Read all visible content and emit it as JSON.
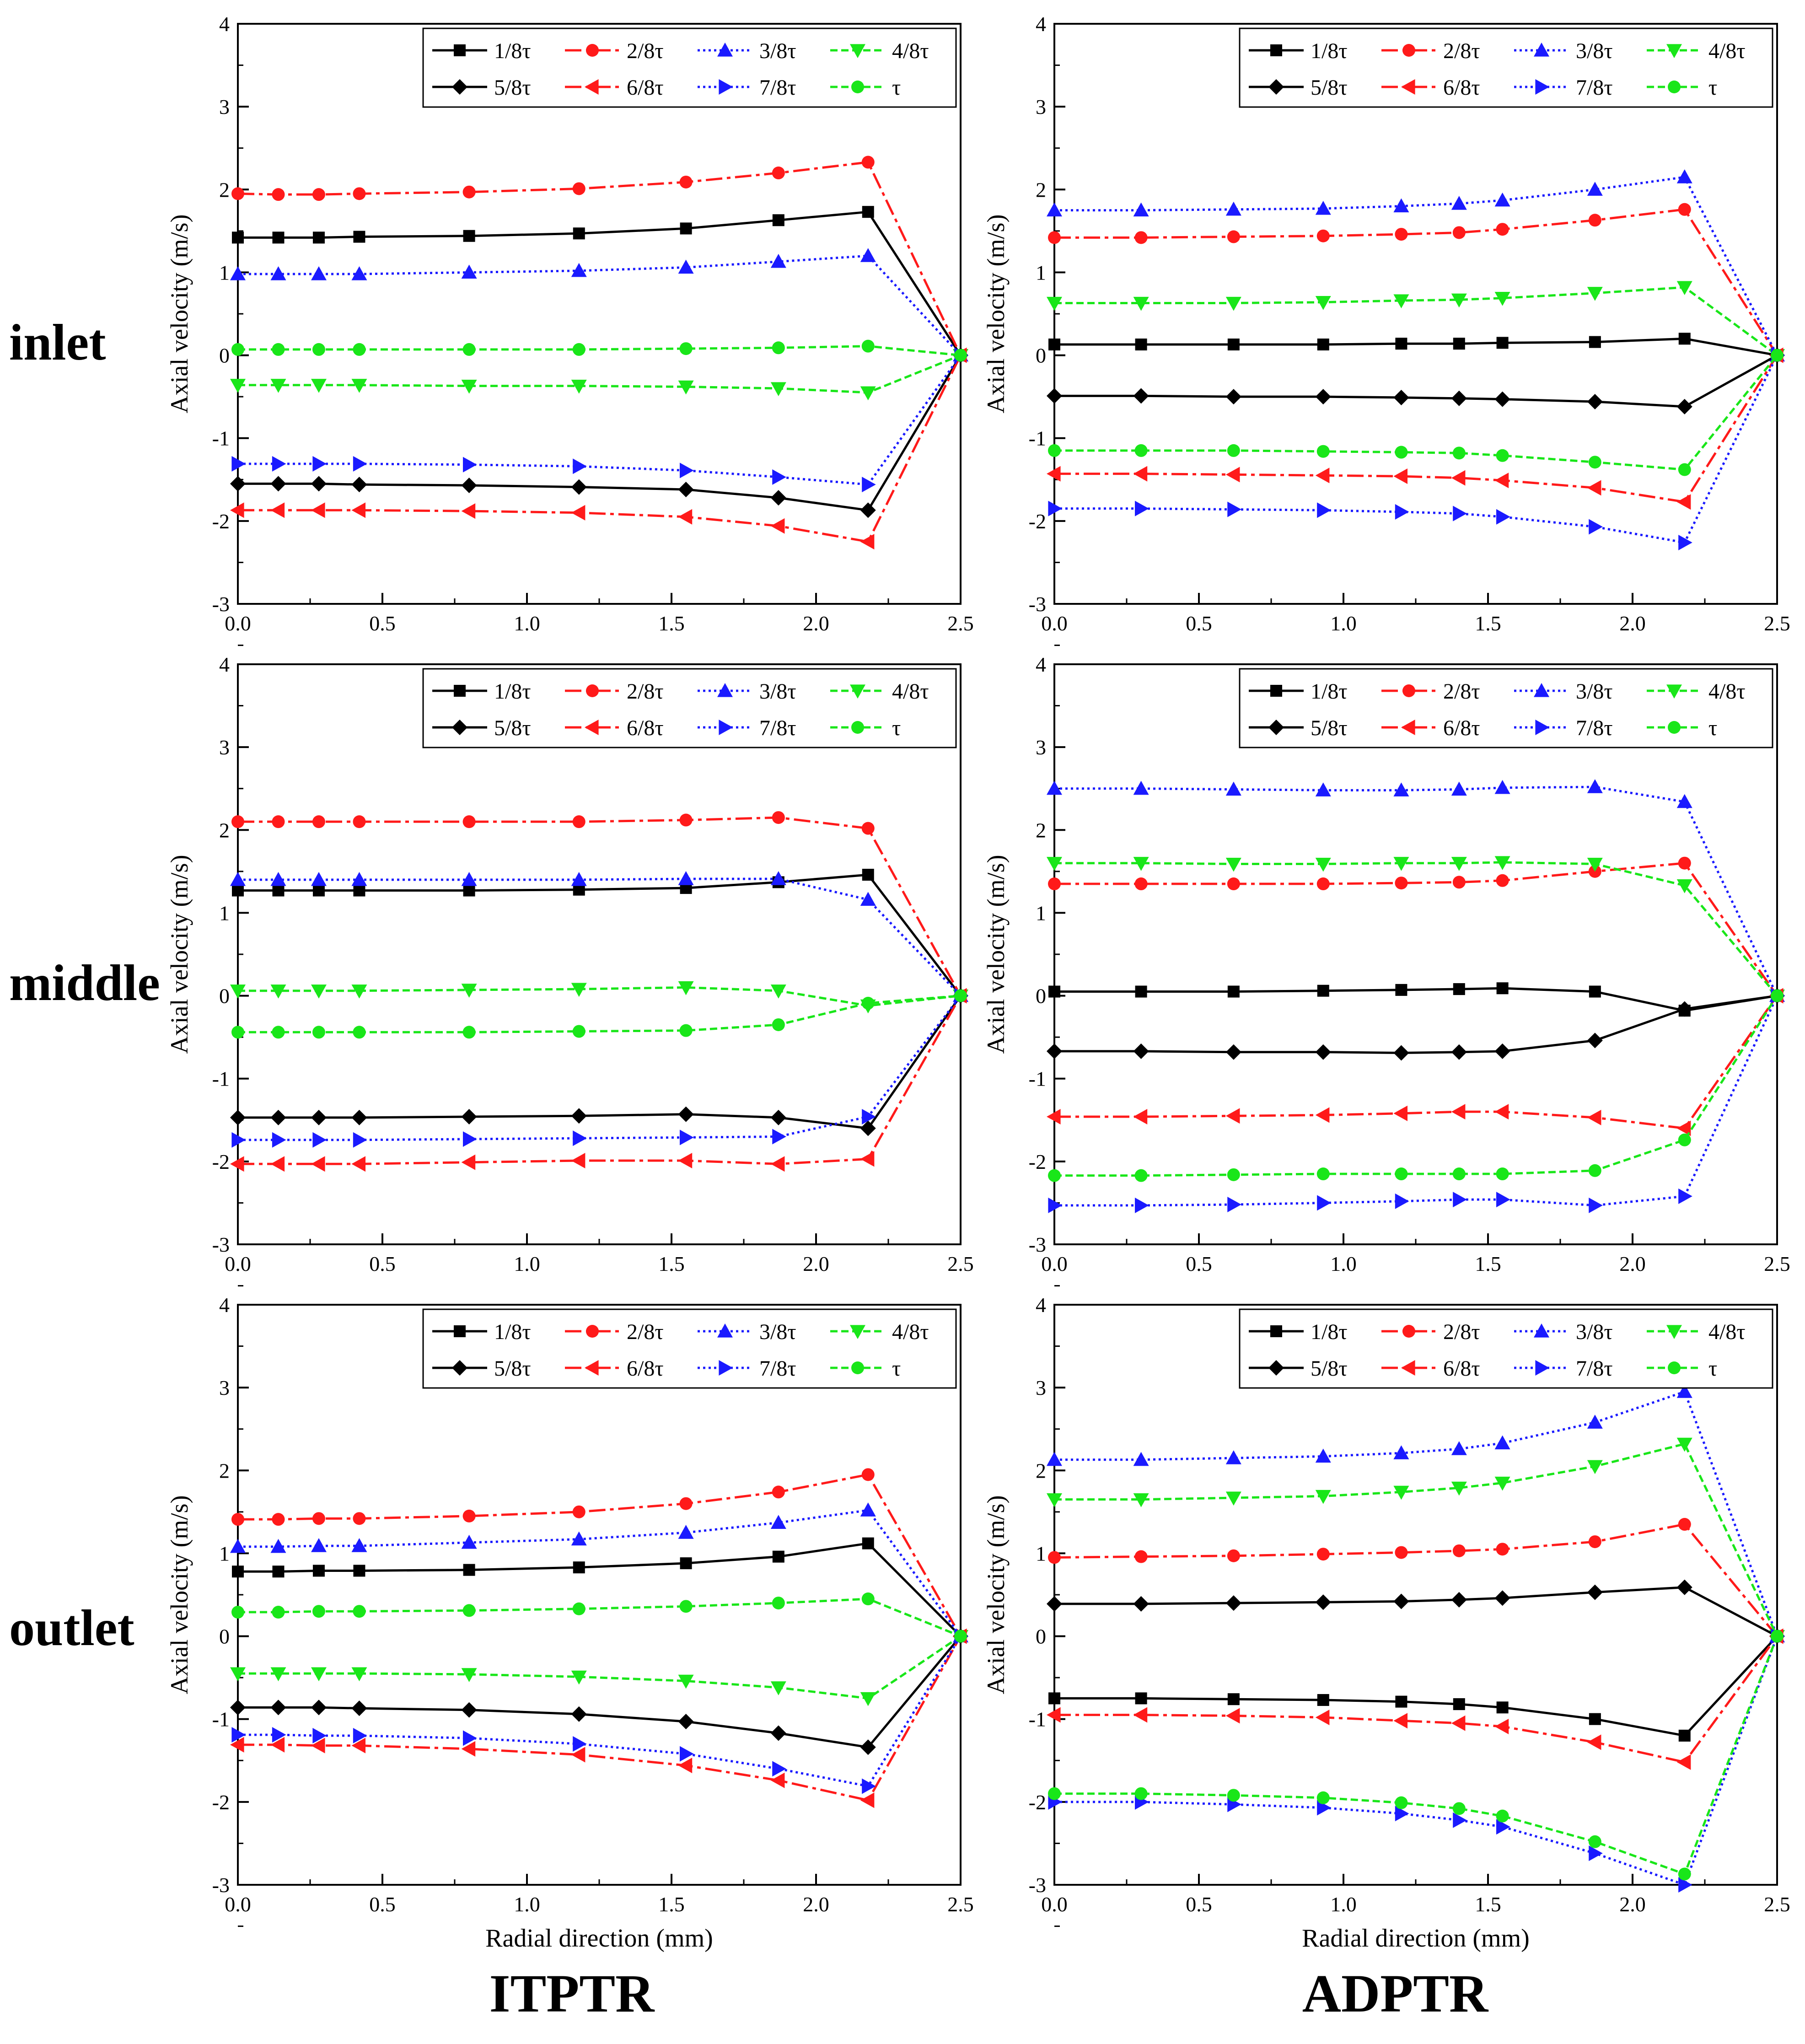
{
  "labels": {
    "rows": [
      "inlet",
      "middle",
      "outlet"
    ],
    "columns": [
      "ITPTR",
      "ADPTR"
    ]
  },
  "colors": {
    "black": "#000000",
    "red": "#ff1a1a",
    "blue": "#1a1aff",
    "green": "#19e619"
  },
  "chart_data": [
    {
      "type": "line",
      "panel": "ITPTR-inlet",
      "xlabel": "",
      "ylabel": "Axial velocity (m/s)",
      "xlim": [
        0.0,
        2.5
      ],
      "ylim": [
        -3,
        4
      ],
      "xticks": [
        "0.0",
        "0.5",
        "1.0",
        "1.5",
        "2.0",
        "2.5"
      ],
      "yticks": [
        "-3",
        "-2",
        "-1",
        "0",
        "1",
        "2",
        "3",
        "4"
      ],
      "legend": "top-right",
      "x": [
        0.0,
        0.14,
        0.28,
        0.42,
        0.8,
        1.18,
        1.55,
        1.87,
        2.18,
        2.5
      ],
      "series": [
        {
          "name": "1/8τ",
          "values": [
            1.42,
            1.42,
            1.42,
            1.43,
            1.44,
            1.47,
            1.53,
            1.63,
            1.73,
            0
          ]
        },
        {
          "name": "2/8τ",
          "values": [
            1.95,
            1.94,
            1.94,
            1.95,
            1.97,
            2.01,
            2.09,
            2.2,
            2.33,
            0
          ]
        },
        {
          "name": "3/8τ",
          "values": [
            0.98,
            0.98,
            0.98,
            0.98,
            1.0,
            1.02,
            1.06,
            1.13,
            1.2,
            0
          ]
        },
        {
          "name": "4/8τ",
          "values": [
            -0.36,
            -0.36,
            -0.36,
            -0.36,
            -0.37,
            -0.37,
            -0.38,
            -0.4,
            -0.45,
            0
          ]
        },
        {
          "name": "5/8τ",
          "values": [
            -1.55,
            -1.55,
            -1.55,
            -1.56,
            -1.57,
            -1.59,
            -1.62,
            -1.72,
            -1.87,
            0
          ]
        },
        {
          "name": "6/8τ",
          "values": [
            -1.87,
            -1.87,
            -1.87,
            -1.87,
            -1.88,
            -1.9,
            -1.95,
            -2.06,
            -2.25,
            0
          ]
        },
        {
          "name": "7/8τ",
          "values": [
            -1.31,
            -1.31,
            -1.31,
            -1.31,
            -1.32,
            -1.34,
            -1.39,
            -1.47,
            -1.56,
            0
          ]
        },
        {
          "name": "τ",
          "values": [
            0.07,
            0.07,
            0.07,
            0.07,
            0.07,
            0.07,
            0.08,
            0.09,
            0.11,
            0
          ]
        }
      ]
    },
    {
      "type": "line",
      "panel": "ADPTR-inlet",
      "xlabel": "",
      "ylabel": "Axial velocity (m/s)",
      "xlim": [
        0.0,
        2.5
      ],
      "ylim": [
        -3,
        4
      ],
      "xticks": [
        "0.0",
        "0.5",
        "1.0",
        "1.5",
        "2.0",
        "2.5"
      ],
      "yticks": [
        "-3",
        "-2",
        "-1",
        "0",
        "1",
        "2",
        "3",
        "4"
      ],
      "legend": "top-right",
      "x": [
        0.0,
        0.3,
        0.62,
        0.93,
        1.2,
        1.4,
        1.55,
        1.87,
        2.18,
        2.5
      ],
      "series": [
        {
          "name": "1/8τ",
          "values": [
            0.13,
            0.13,
            0.13,
            0.13,
            0.14,
            0.14,
            0.15,
            0.16,
            0.2,
            0
          ]
        },
        {
          "name": "2/8τ",
          "values": [
            1.42,
            1.42,
            1.43,
            1.44,
            1.46,
            1.48,
            1.52,
            1.63,
            1.76,
            0
          ]
        },
        {
          "name": "3/8τ",
          "values": [
            1.75,
            1.75,
            1.76,
            1.77,
            1.8,
            1.83,
            1.87,
            2.0,
            2.15,
            0
          ]
        },
        {
          "name": "4/8τ",
          "values": [
            0.63,
            0.63,
            0.63,
            0.64,
            0.66,
            0.67,
            0.69,
            0.75,
            0.82,
            0
          ]
        },
        {
          "name": "5/8τ",
          "values": [
            -0.49,
            -0.49,
            -0.5,
            -0.5,
            -0.51,
            -0.52,
            -0.53,
            -0.56,
            -0.62,
            0
          ]
        },
        {
          "name": "6/8τ",
          "values": [
            -1.43,
            -1.43,
            -1.44,
            -1.45,
            -1.46,
            -1.48,
            -1.51,
            -1.6,
            -1.77,
            0
          ]
        },
        {
          "name": "7/8τ",
          "values": [
            -1.85,
            -1.85,
            -1.86,
            -1.87,
            -1.89,
            -1.91,
            -1.95,
            -2.07,
            -2.26,
            0
          ]
        },
        {
          "name": "τ",
          "values": [
            -1.15,
            -1.15,
            -1.15,
            -1.16,
            -1.17,
            -1.18,
            -1.21,
            -1.29,
            -1.38,
            0
          ]
        }
      ]
    },
    {
      "type": "line",
      "panel": "ITPTR-middle",
      "xlabel": "",
      "ylabel": "Axial velocity (m/s)",
      "xlim": [
        0.0,
        2.5
      ],
      "ylim": [
        -3,
        4
      ],
      "xticks": [
        "0.0",
        "0.5",
        "1.0",
        "1.5",
        "2.0",
        "2.5"
      ],
      "yticks": [
        "-3",
        "-2",
        "-1",
        "0",
        "1",
        "2",
        "3",
        "4"
      ],
      "legend": "top-right",
      "x": [
        0.0,
        0.14,
        0.28,
        0.42,
        0.8,
        1.18,
        1.55,
        1.87,
        2.18,
        2.5
      ],
      "series": [
        {
          "name": "1/8τ",
          "values": [
            1.27,
            1.27,
            1.27,
            1.27,
            1.27,
            1.28,
            1.3,
            1.37,
            1.46,
            0
          ]
        },
        {
          "name": "2/8τ",
          "values": [
            2.1,
            2.1,
            2.1,
            2.1,
            2.1,
            2.1,
            2.12,
            2.15,
            2.02,
            0
          ]
        },
        {
          "name": "3/8τ",
          "values": [
            1.4,
            1.4,
            1.4,
            1.4,
            1.4,
            1.4,
            1.41,
            1.41,
            1.16,
            0
          ]
        },
        {
          "name": "4/8τ",
          "values": [
            0.06,
            0.06,
            0.06,
            0.06,
            0.07,
            0.08,
            0.1,
            0.06,
            -0.12,
            0
          ]
        },
        {
          "name": "5/8τ",
          "values": [
            -1.47,
            -1.47,
            -1.47,
            -1.47,
            -1.46,
            -1.45,
            -1.43,
            -1.47,
            -1.6,
            0
          ]
        },
        {
          "name": "6/8τ",
          "values": [
            -2.03,
            -2.03,
            -2.03,
            -2.03,
            -2.01,
            -1.99,
            -1.99,
            -2.03,
            -1.97,
            0
          ]
        },
        {
          "name": "7/8τ",
          "values": [
            -1.74,
            -1.74,
            -1.74,
            -1.74,
            -1.73,
            -1.72,
            -1.71,
            -1.7,
            -1.46,
            0
          ]
        },
        {
          "name": "τ",
          "values": [
            -0.44,
            -0.44,
            -0.44,
            -0.44,
            -0.44,
            -0.43,
            -0.42,
            -0.35,
            -0.09,
            0
          ]
        }
      ]
    },
    {
      "type": "line",
      "panel": "ADPTR-middle",
      "xlabel": "",
      "ylabel": "Axial velocity (m/s)",
      "xlim": [
        0.0,
        2.5
      ],
      "ylim": [
        -3,
        4
      ],
      "xticks": [
        "0.0",
        "0.5",
        "1.0",
        "1.5",
        "2.0",
        "2.5"
      ],
      "yticks": [
        "-3",
        "-2",
        "-1",
        "0",
        "1",
        "2",
        "3",
        "4"
      ],
      "legend": "top-right",
      "x": [
        0.0,
        0.3,
        0.62,
        0.93,
        1.2,
        1.4,
        1.55,
        1.87,
        2.18,
        2.5
      ],
      "series": [
        {
          "name": "1/8τ",
          "values": [
            0.05,
            0.05,
            0.05,
            0.06,
            0.07,
            0.08,
            0.09,
            0.05,
            -0.18,
            0
          ]
        },
        {
          "name": "2/8τ",
          "values": [
            1.35,
            1.35,
            1.35,
            1.35,
            1.36,
            1.37,
            1.39,
            1.5,
            1.6,
            0
          ]
        },
        {
          "name": "3/8τ",
          "values": [
            2.5,
            2.5,
            2.49,
            2.48,
            2.48,
            2.49,
            2.51,
            2.52,
            2.34,
            0
          ]
        },
        {
          "name": "4/8τ",
          "values": [
            1.6,
            1.6,
            1.59,
            1.59,
            1.6,
            1.6,
            1.61,
            1.59,
            1.33,
            0
          ]
        },
        {
          "name": "5/8τ",
          "values": [
            -0.67,
            -0.67,
            -0.68,
            -0.68,
            -0.69,
            -0.68,
            -0.67,
            -0.54,
            -0.16,
            0
          ]
        },
        {
          "name": "6/8τ",
          "values": [
            -1.46,
            -1.46,
            -1.45,
            -1.44,
            -1.42,
            -1.4,
            -1.4,
            -1.47,
            -1.6,
            0
          ]
        },
        {
          "name": "7/8τ",
          "values": [
            -2.53,
            -2.53,
            -2.52,
            -2.5,
            -2.48,
            -2.46,
            -2.46,
            -2.53,
            -2.42,
            0
          ]
        },
        {
          "name": "τ",
          "values": [
            -2.17,
            -2.17,
            -2.16,
            -2.15,
            -2.15,
            -2.15,
            -2.15,
            -2.11,
            -1.74,
            0
          ]
        }
      ]
    },
    {
      "type": "line",
      "panel": "ITPTR-outlet",
      "xlabel": "Radial direction (mm)",
      "ylabel": "Axial velocity (m/s)",
      "xlim": [
        0.0,
        2.5
      ],
      "ylim": [
        -3,
        4
      ],
      "xticks": [
        "0.0",
        "0.5",
        "1.0",
        "1.5",
        "2.0",
        "2.5"
      ],
      "yticks": [
        "-3",
        "-2",
        "-1",
        "0",
        "1",
        "2",
        "3",
        "4"
      ],
      "legend": "top-right",
      "x": [
        0.0,
        0.14,
        0.28,
        0.42,
        0.8,
        1.18,
        1.55,
        1.87,
        2.18,
        2.5
      ],
      "series": [
        {
          "name": "1/8τ",
          "values": [
            0.78,
            0.78,
            0.79,
            0.79,
            0.8,
            0.83,
            0.88,
            0.96,
            1.12,
            0
          ]
        },
        {
          "name": "2/8τ",
          "values": [
            1.41,
            1.41,
            1.42,
            1.42,
            1.45,
            1.5,
            1.6,
            1.74,
            1.95,
            0
          ]
        },
        {
          "name": "3/8τ",
          "values": [
            1.08,
            1.08,
            1.09,
            1.09,
            1.13,
            1.17,
            1.25,
            1.37,
            1.52,
            0
          ]
        },
        {
          "name": "4/8τ",
          "values": [
            -0.45,
            -0.45,
            -0.45,
            -0.45,
            -0.46,
            -0.49,
            -0.54,
            -0.62,
            -0.75,
            0
          ]
        },
        {
          "name": "5/8τ",
          "values": [
            -0.86,
            -0.86,
            -0.86,
            -0.87,
            -0.89,
            -0.94,
            -1.03,
            -1.17,
            -1.34,
            0
          ]
        },
        {
          "name": "6/8τ",
          "values": [
            -1.31,
            -1.31,
            -1.32,
            -1.32,
            -1.36,
            -1.43,
            -1.56,
            -1.74,
            -1.98,
            0
          ]
        },
        {
          "name": "7/8τ",
          "values": [
            -1.19,
            -1.19,
            -1.2,
            -1.2,
            -1.23,
            -1.3,
            -1.42,
            -1.6,
            -1.81,
            0
          ]
        },
        {
          "name": "τ",
          "values": [
            0.29,
            0.29,
            0.3,
            0.3,
            0.31,
            0.33,
            0.36,
            0.4,
            0.45,
            0
          ]
        }
      ]
    },
    {
      "type": "line",
      "panel": "ADPTR-outlet",
      "xlabel": "Radial direction (mm)",
      "ylabel": "Axial velocity (m/s)",
      "xlim": [
        0.0,
        2.5
      ],
      "ylim": [
        -3,
        4
      ],
      "xticks": [
        "0.0",
        "0.5",
        "1.0",
        "1.5",
        "2.0",
        "2.5"
      ],
      "yticks": [
        "-3",
        "-2",
        "-1",
        "0",
        "1",
        "2",
        "3",
        "4"
      ],
      "legend": "top-right",
      "x": [
        0.0,
        0.3,
        0.62,
        0.93,
        1.2,
        1.4,
        1.55,
        1.87,
        2.18,
        2.5
      ],
      "series": [
        {
          "name": "1/8τ",
          "values": [
            -0.75,
            -0.75,
            -0.76,
            -0.77,
            -0.79,
            -0.82,
            -0.86,
            -1.0,
            -1.2,
            0
          ]
        },
        {
          "name": "2/8τ",
          "values": [
            0.95,
            0.96,
            0.97,
            0.99,
            1.01,
            1.03,
            1.05,
            1.14,
            1.35,
            0
          ]
        },
        {
          "name": "3/8τ",
          "values": [
            2.13,
            2.13,
            2.15,
            2.17,
            2.21,
            2.26,
            2.33,
            2.58,
            2.95,
            0
          ]
        },
        {
          "name": "4/8τ",
          "values": [
            1.65,
            1.65,
            1.67,
            1.69,
            1.74,
            1.79,
            1.85,
            2.05,
            2.32,
            0
          ]
        },
        {
          "name": "5/8τ",
          "values": [
            0.39,
            0.39,
            0.4,
            0.41,
            0.42,
            0.44,
            0.46,
            0.53,
            0.59,
            0
          ]
        },
        {
          "name": "6/8τ",
          "values": [
            -0.95,
            -0.95,
            -0.96,
            -0.98,
            -1.02,
            -1.05,
            -1.09,
            -1.28,
            -1.52,
            0
          ]
        },
        {
          "name": "7/8τ",
          "values": [
            -2.0,
            -2.0,
            -2.03,
            -2.07,
            -2.14,
            -2.22,
            -2.3,
            -2.62,
            -3.0,
            0
          ]
        },
        {
          "name": "τ",
          "values": [
            -1.9,
            -1.9,
            -1.92,
            -1.95,
            -2.01,
            -2.08,
            -2.17,
            -2.48,
            -2.87,
            0
          ]
        }
      ]
    }
  ]
}
